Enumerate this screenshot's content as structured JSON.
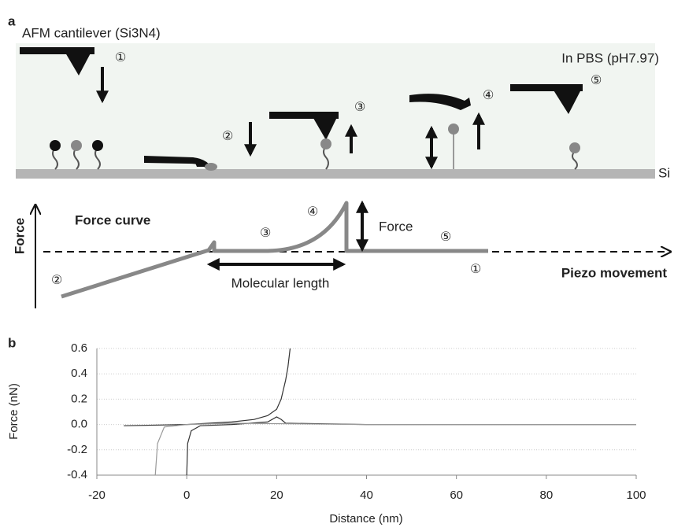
{
  "panel_a": {
    "label": "a",
    "cantilever": "AFM cantilever (Si3N4)",
    "medium": "In PBS (pH7.97)",
    "substrate": "Si",
    "steps": [
      "①",
      "②",
      "③",
      "④",
      "⑤"
    ],
    "force_curve": {
      "title": "Force curve",
      "y_axis": "Force",
      "x_axis": "Piezo movement",
      "force_label": "Force",
      "length_label": "Molecular length"
    }
  },
  "chart_data": {
    "type": "line",
    "panel_label": "b",
    "x_label": "Distance (nm)",
    "y_label": "Force (nN)",
    "xlim": [
      -20,
      100
    ],
    "xticks": [
      -20,
      0,
      20,
      40,
      60,
      80,
      100
    ],
    "ylim": [
      -0.4,
      0.6
    ],
    "yticks": [
      0.6,
      0.4,
      0.2,
      {
        "value": 0,
        "label": "0.0"
      },
      -0.2,
      -0.4
    ],
    "grid": true,
    "series": [
      {
        "color": "#333333",
        "x": [
          -14,
          0,
          10,
          15,
          18,
          20,
          21,
          22,
          22.5,
          23
        ],
        "values": [
          -0.01,
          0,
          0.02,
          0.04,
          0.07,
          0.12,
          0.2,
          0.35,
          0.45,
          0.6
        ]
      },
      {
        "color": "#333333",
        "x": [
          0,
          0.2,
          1,
          3,
          10,
          18,
          20,
          21,
          22,
          40,
          60,
          80,
          100
        ],
        "values": [
          -0.4,
          -0.15,
          -0.05,
          -0.01,
          0,
          0.02,
          0.06,
          0.04,
          0.01,
          0,
          0,
          0,
          0
        ]
      },
      {
        "color": "#999999",
        "x": [
          -7,
          -6.5,
          -5,
          0,
          10,
          40,
          100
        ],
        "values": [
          -0.4,
          -0.15,
          -0.02,
          0,
          0.01,
          0,
          0
        ]
      }
    ]
  }
}
